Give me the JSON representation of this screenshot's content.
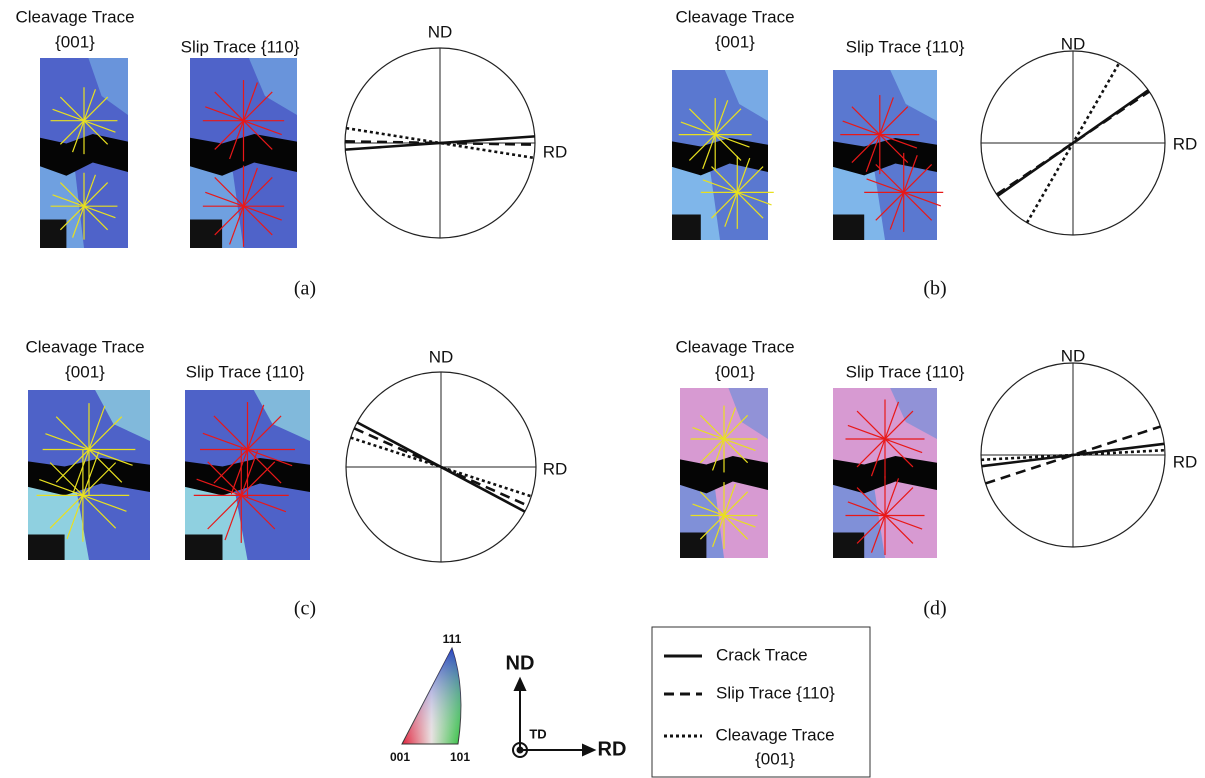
{
  "panels": [
    {
      "cleavage_title": "Cleavage Trace",
      "cleavage_plane": "{001}",
      "slip_title": "Slip Trace {110}",
      "nd": "ND",
      "rd": "RD",
      "caption": "(a)"
    },
    {
      "cleavage_title": "Cleavage Trace",
      "cleavage_plane": "{001}",
      "slip_title": "Slip Trace {110}",
      "nd": "ND",
      "rd": "RD",
      "caption": "(b)"
    },
    {
      "cleavage_title": "Cleavage Trace",
      "cleavage_plane": "{001}",
      "slip_title": "Slip Trace {110}",
      "nd": "ND",
      "rd": "RD",
      "caption": "(c)"
    },
    {
      "cleavage_title": "Cleavage Trace",
      "cleavage_plane": "{001}",
      "slip_title": "Slip Trace {110}",
      "nd": "ND",
      "rd": "RD",
      "caption": "(d)"
    }
  ],
  "legend": {
    "ipf": {
      "top": "111",
      "left": "001",
      "right": "101"
    },
    "axes": {
      "up": "ND",
      "center": "TD",
      "right": "RD"
    },
    "entries": [
      {
        "label": "Crack Trace"
      },
      {
        "label": "Slip Trace {110}"
      },
      {
        "label": "Cleavage Trace",
        "sublabel": "{001}"
      }
    ]
  }
}
